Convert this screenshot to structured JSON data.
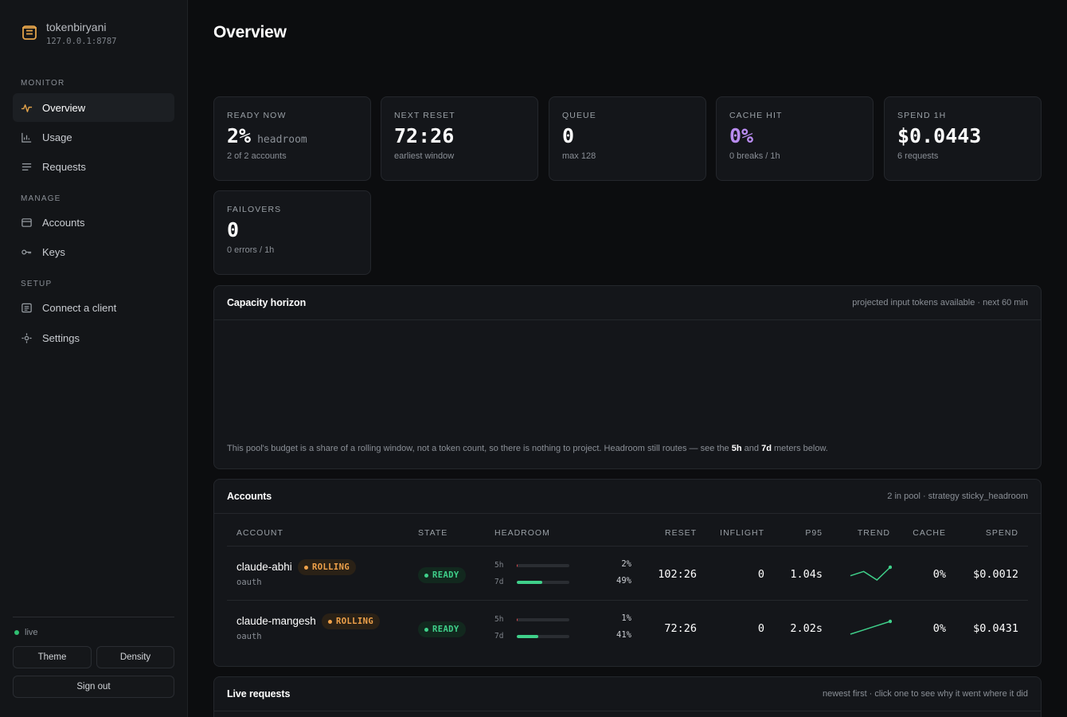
{
  "brand": {
    "name": "tokenbiryani",
    "address": "127.0.0.1:8787"
  },
  "sidebar": {
    "sections": [
      {
        "label": "MONITOR",
        "items": [
          {
            "label": "Overview",
            "icon": "pulse-icon",
            "active": true
          },
          {
            "label": "Usage",
            "icon": "bar-chart-icon"
          },
          {
            "label": "Requests",
            "icon": "list-icon"
          }
        ]
      },
      {
        "label": "MANAGE",
        "items": [
          {
            "label": "Accounts",
            "icon": "card-icon"
          },
          {
            "label": "Keys",
            "icon": "key-icon"
          }
        ]
      },
      {
        "label": "SETUP",
        "items": [
          {
            "label": "Connect a client",
            "icon": "terminal-icon"
          },
          {
            "label": "Settings",
            "icon": "gear-icon"
          }
        ]
      }
    ],
    "status": "live",
    "theme_label": "Theme",
    "density_label": "Density",
    "signout_label": "Sign out"
  },
  "page": {
    "title": "Overview"
  },
  "stats": [
    {
      "label": "READY NOW",
      "value": "2%",
      "unit": "headroom",
      "sub": "2 of 2 accounts"
    },
    {
      "label": "NEXT RESET",
      "value": "72:26",
      "unit": "",
      "sub": "earliest window"
    },
    {
      "label": "QUEUE",
      "value": "0",
      "unit": "",
      "sub": "max 128"
    },
    {
      "label": "CACHE HIT",
      "value": "0%",
      "unit": "",
      "sub": "0 breaks / 1h"
    },
    {
      "label": "SPEND 1H",
      "value": "$0.0443",
      "unit": "",
      "sub": "6 requests"
    },
    {
      "label": "FAILOVERS",
      "value": "0",
      "unit": "",
      "sub": "0 errors / 1h"
    }
  ],
  "capacity": {
    "title": "Capacity horizon",
    "meta": "projected input tokens available · next 60 min",
    "note_before": "This pool's budget is a share of a rolling window, not a token count, so there is nothing to project. Headroom still routes — see the",
    "note_5h": "5h",
    "note_and": "and",
    "note_7d": "7d",
    "note_after": "meters below."
  },
  "accounts": {
    "title": "Accounts",
    "meta": "2 in pool · strategy sticky_headroom",
    "columns": [
      "ACCOUNT",
      "STATE",
      "HEADROOM",
      "RESET",
      "INFLIGHT",
      "P95",
      "TREND",
      "CACHE",
      "SPEND"
    ],
    "rows": [
      {
        "name": "claude-abhi",
        "badge": "ROLLING",
        "auth": "oauth",
        "state": "READY",
        "meter_5h_label": "5h",
        "meter_5h_pct": "2%",
        "meter_5h_value": 0.02,
        "meter_7d_label": "7d",
        "meter_7d_pct": "49%",
        "meter_7d_value": 0.49,
        "reset": "102:26",
        "inflight": "0",
        "p95": "1.04s",
        "trend": [
          2,
          3,
          1,
          4
        ],
        "cache": "0%",
        "spend": "$0.0012"
      },
      {
        "name": "claude-mangesh",
        "badge": "ROLLING",
        "auth": "oauth",
        "state": "READY",
        "meter_5h_label": "5h",
        "meter_5h_pct": "1%",
        "meter_5h_value": 0.01,
        "meter_7d_label": "7d",
        "meter_7d_pct": "41%",
        "meter_7d_value": 0.41,
        "reset": "72:26",
        "inflight": "0",
        "p95": "2.02s",
        "trend": [
          1,
          2,
          3,
          4
        ],
        "cache": "0%",
        "spend": "$0.0431"
      }
    ]
  },
  "live_requests": {
    "title": "Live requests",
    "meta": "newest first · click one to see why it went where it did"
  },
  "colors": {
    "accent_green": "#3fd08a",
    "accent_orange": "#f0a24a",
    "accent_purple": "#b98cf0",
    "meter_5h": "#e0484f"
  }
}
